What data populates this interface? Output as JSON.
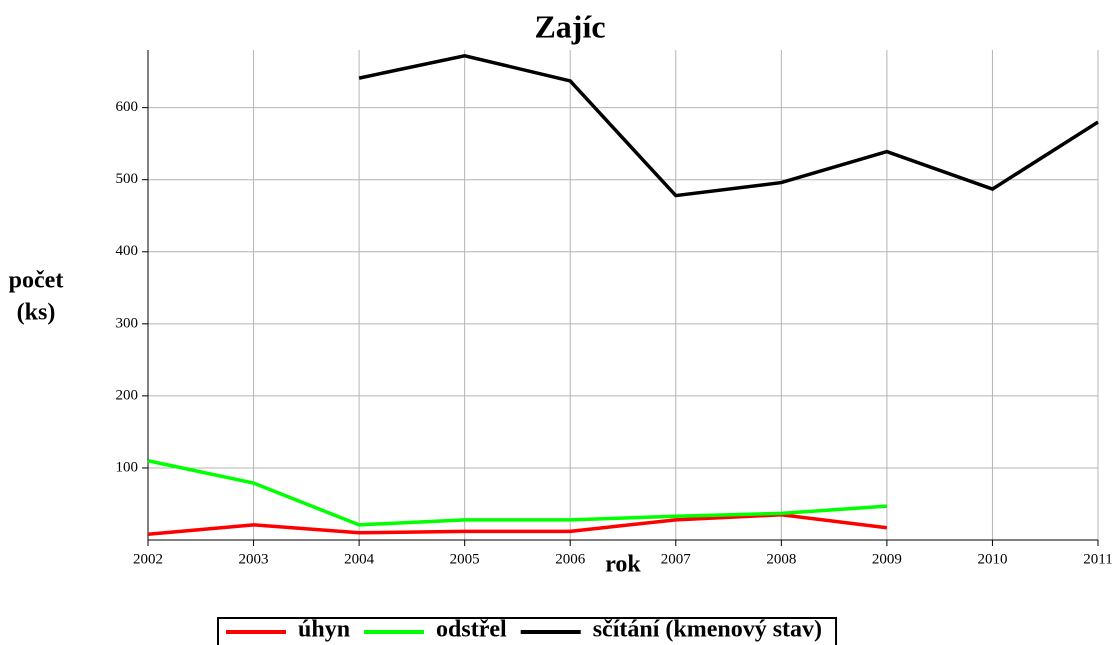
{
  "chart_data": {
    "type": "line",
    "title": "Zajíc",
    "xlabel": "rok",
    "ylabel": [
      "počet",
      "(ks)"
    ],
    "x": [
      2002,
      2003,
      2004,
      2005,
      2006,
      2007,
      2008,
      2009,
      2010,
      2011
    ],
    "series": [
      {
        "name": "úhyn",
        "color": "#ff0000",
        "values": [
          8,
          21,
          10,
          12,
          12,
          28,
          35,
          17,
          null,
          null
        ]
      },
      {
        "name": "odstřel",
        "color": "#00ff00",
        "values": [
          110,
          79,
          21,
          28,
          28,
          33,
          37,
          47,
          null,
          null
        ]
      },
      {
        "name": "sčítání (kmenový stav)",
        "color": "#000000",
        "values": [
          null,
          null,
          641,
          672,
          637,
          478,
          496,
          539,
          487,
          580
        ]
      }
    ],
    "xlim": [
      2002,
      2011
    ],
    "xticks": [
      2002,
      2003,
      2004,
      2005,
      2006,
      2007,
      2008,
      2009,
      2010,
      2011
    ],
    "ylim": [
      0,
      680
    ],
    "yticks": [
      100,
      200,
      300,
      400,
      500,
      600
    ],
    "grid": true,
    "legend": "bottom"
  }
}
